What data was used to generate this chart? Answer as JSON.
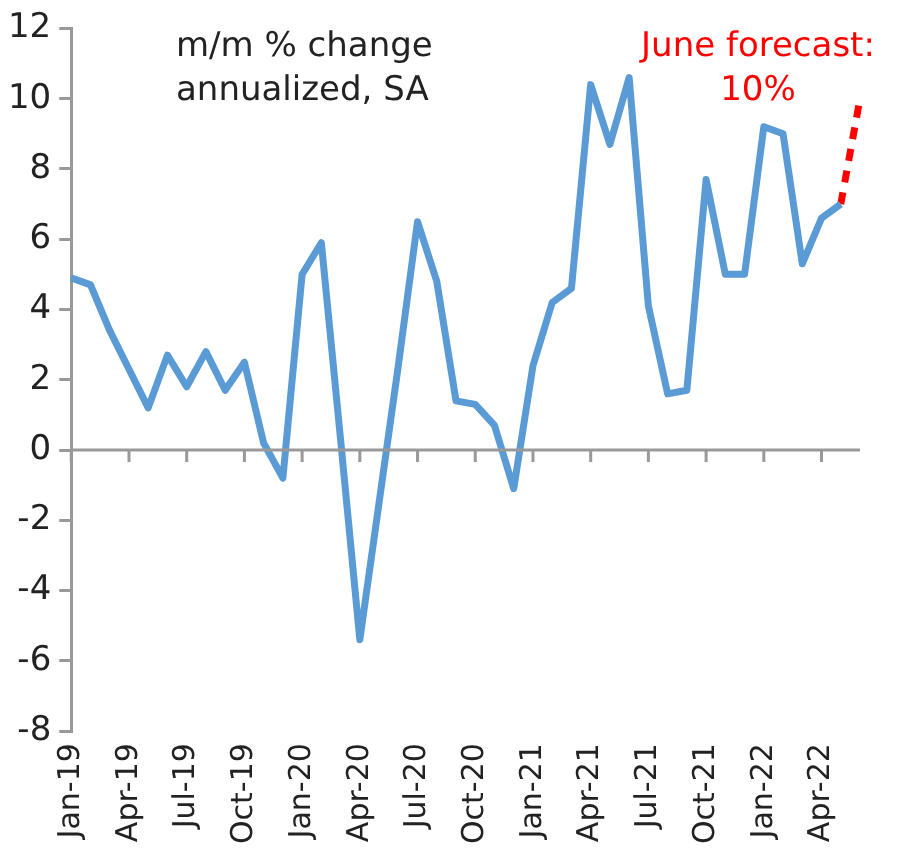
{
  "chart_data": {
    "type": "line",
    "categories": [
      "Jan-19",
      null,
      null,
      "Apr-19",
      null,
      null,
      "Jul-19",
      null,
      null,
      "Oct-19",
      null,
      null,
      "Jan-20",
      null,
      null,
      "Apr-20",
      null,
      null,
      "Jul-20",
      null,
      null,
      "Oct-20",
      null,
      null,
      "Jan-21",
      null,
      null,
      "Apr-21",
      null,
      null,
      "Jul-21",
      null,
      null,
      "Oct-21",
      null,
      null,
      "Jan-22",
      null,
      null,
      "Apr-22",
      null,
      null
    ],
    "series": [
      {
        "color": "#5b9bd5",
        "line_style": "solid",
        "values": [
          4.9,
          4.7,
          3.4,
          2.3,
          1.2,
          2.7,
          1.8,
          2.8,
          1.7,
          2.5,
          0.2,
          -0.8,
          5.0,
          5.9,
          0.3,
          -5.4,
          -1.5,
          2.4,
          6.5,
          4.8,
          1.4,
          1.3,
          0.7,
          -1.1,
          2.4,
          4.2,
          4.6,
          10.4,
          8.7,
          10.6,
          4.1,
          1.6,
          1.7,
          7.7,
          5.0,
          5.0,
          9.2,
          9.0,
          5.3,
          6.6,
          7.0,
          null
        ]
      },
      {
        "color": "#ff0000",
        "line_style": "dashed",
        "values": [
          null,
          null,
          null,
          null,
          null,
          null,
          null,
          null,
          null,
          null,
          null,
          null,
          null,
          null,
          null,
          null,
          null,
          null,
          null,
          null,
          null,
          null,
          null,
          null,
          null,
          null,
          null,
          null,
          null,
          null,
          null,
          null,
          null,
          null,
          null,
          null,
          null,
          null,
          null,
          null,
          7.0,
          10
        ]
      }
    ],
    "ylim": [
      -8,
      12
    ],
    "yticks": [
      -8,
      -6,
      -4,
      -2,
      0,
      2,
      4,
      6,
      8,
      10,
      12
    ],
    "ref_lines": [
      {
        "axis": "y",
        "value": 0,
        "color": "#999999"
      }
    ],
    "grid": false,
    "legend": false,
    "marker": "none",
    "annotations": [
      "m/m % change annualized, SA",
      "June forecast: 10%"
    ]
  }
}
